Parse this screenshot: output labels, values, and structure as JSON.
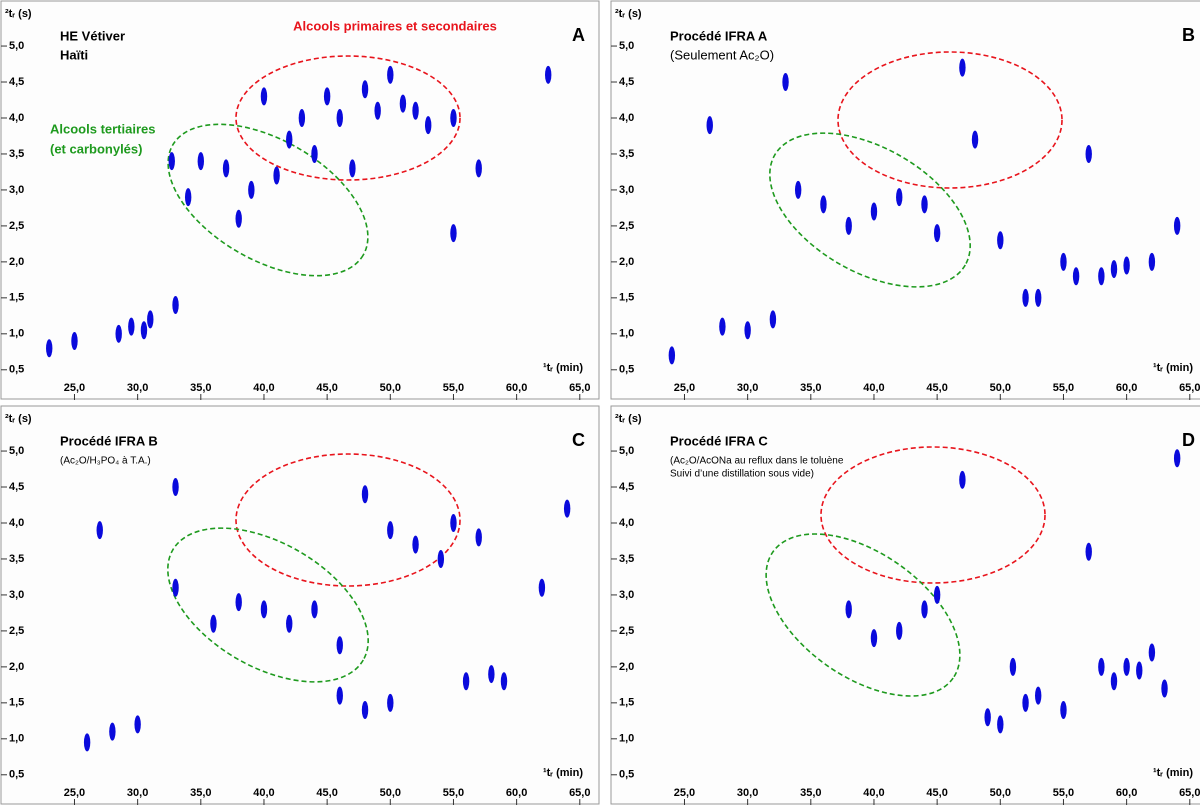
{
  "chart_data": [
    {
      "type": "scatter",
      "label": "A",
      "title": [
        "HE Vétiver",
        "Haïti"
      ],
      "annotations": [
        {
          "text": [
            "Alcools primaires et secondaires"
          ],
          "color": "#e8141c"
        },
        {
          "text": [
            "Alcools tertiaires",
            "(et carbonylés)"
          ],
          "color": "#1e9a1e"
        }
      ],
      "x_label": "¹tᵣ (min)",
      "y_label": "²tᵣ (s)",
      "color": "#0a0adc",
      "xlim": [
        19.5,
        66.6
      ],
      "ylim": [
        0.08,
        5.64
      ],
      "xticks": [
        {
          "value": 25,
          "label": "25,0"
        },
        {
          "value": 30,
          "label": "30,0"
        },
        {
          "value": 35,
          "label": "35,0"
        },
        {
          "value": 40,
          "label": "40,0"
        },
        {
          "value": 45,
          "label": "45,0"
        },
        {
          "value": 50,
          "label": "50,0"
        },
        {
          "value": 55,
          "label": "55,0"
        },
        {
          "value": 60,
          "label": "60,0"
        },
        {
          "value": 65,
          "label": "65,0"
        }
      ],
      "yticks": [
        {
          "value": 0.5,
          "label": "0,5"
        },
        {
          "value": 1,
          "label": "1,0"
        },
        {
          "value": 1.5,
          "label": "1,5"
        },
        {
          "value": 2,
          "label": "2,0"
        },
        {
          "value": 2.5,
          "label": "2,5"
        },
        {
          "value": 3,
          "label": "3,0"
        },
        {
          "value": 3.5,
          "label": "3,5"
        },
        {
          "value": 4,
          "label": "4,0"
        },
        {
          "value": 4.5,
          "label": "4,5"
        },
        {
          "value": 5,
          "label": "5,0"
        }
      ],
      "x": [
        23,
        25,
        28.5,
        29.5,
        30.5,
        31,
        33,
        32.7,
        34,
        35,
        37,
        38,
        39,
        40,
        41,
        42,
        43,
        44,
        45,
        46,
        47,
        48,
        49,
        50,
        51,
        52,
        53,
        55,
        57,
        55,
        62.5
      ],
      "y": [
        0.8,
        0.9,
        1.0,
        1.1,
        1.05,
        1.2,
        1.4,
        3.4,
        2.9,
        3.4,
        3.3,
        2.6,
        3.0,
        4.3,
        3.2,
        3.7,
        4.0,
        3.5,
        4.3,
        4.0,
        3.3,
        4.4,
        4.1,
        4.6,
        4.2,
        4.1,
        3.9,
        4.0,
        3.3,
        2.4,
        4.6
      ]
    },
    {
      "type": "scatter",
      "label": "B",
      "title": [
        "Procédé IFRA A"
      ],
      "subtitle": [
        "(Seulement Ac₂O)"
      ],
      "x_label": "¹tᵣ (min)",
      "y_label": "²tᵣ (s)",
      "color": "#0a0adc",
      "xlim": [
        19.5,
        66.6
      ],
      "ylim": [
        0.08,
        5.64
      ],
      "xticks": [
        {
          "value": 25,
          "label": "25,0"
        },
        {
          "value": 30,
          "label": "30,0"
        },
        {
          "value": 35,
          "label": "35,0"
        },
        {
          "value": 40,
          "label": "40,0"
        },
        {
          "value": 45,
          "label": "45,0"
        },
        {
          "value": 50,
          "label": "50,0"
        },
        {
          "value": 55,
          "label": "55,0"
        },
        {
          "value": 60,
          "label": "60,0"
        },
        {
          "value": 65,
          "label": "65,0"
        }
      ],
      "yticks": [
        {
          "value": 0.5,
          "label": "0,5"
        },
        {
          "value": 1,
          "label": "1,0"
        },
        {
          "value": 1.5,
          "label": "1,5"
        },
        {
          "value": 2,
          "label": "2,0"
        },
        {
          "value": 2.5,
          "label": "2,5"
        },
        {
          "value": 3,
          "label": "3,0"
        },
        {
          "value": 3.5,
          "label": "3,5"
        },
        {
          "value": 4,
          "label": "4,0"
        },
        {
          "value": 4.5,
          "label": "4,5"
        },
        {
          "value": 5,
          "label": "5,0"
        }
      ],
      "x": [
        24,
        28,
        30,
        32,
        27,
        33,
        34,
        36,
        38,
        40,
        42,
        44,
        45,
        47,
        48,
        50,
        52,
        53,
        55,
        56,
        57,
        58,
        59,
        60,
        62,
        64
      ],
      "y": [
        0.7,
        1.1,
        1.05,
        1.2,
        3.9,
        4.5,
        3.0,
        2.8,
        2.5,
        2.7,
        2.9,
        2.8,
        2.4,
        4.7,
        3.7,
        2.3,
        1.5,
        1.5,
        2.0,
        1.8,
        3.5,
        1.8,
        1.9,
        1.95,
        2.0,
        2.5
      ]
    },
    {
      "type": "scatter",
      "label": "C",
      "title": [
        "Procédé IFRA B"
      ],
      "subtitle": [
        "(Ac₂O/H₃PO₄ à T.A.)"
      ],
      "x_label": "¹tᵣ (min)",
      "y_label": "²tᵣ (s)",
      "color": "#0a0adc",
      "xlim": [
        19.5,
        66.6
      ],
      "ylim": [
        0.08,
        5.64
      ],
      "xticks": [
        {
          "value": 25,
          "label": "25,0"
        },
        {
          "value": 30,
          "label": "30,0"
        },
        {
          "value": 35,
          "label": "35,0"
        },
        {
          "value": 40,
          "label": "40,0"
        },
        {
          "value": 45,
          "label": "45,0"
        },
        {
          "value": 50,
          "label": "50,0"
        },
        {
          "value": 55,
          "label": "55,0"
        },
        {
          "value": 60,
          "label": "60,0"
        },
        {
          "value": 65,
          "label": "65,0"
        }
      ],
      "yticks": [
        {
          "value": 0.5,
          "label": "0,5"
        },
        {
          "value": 1,
          "label": "1,0"
        },
        {
          "value": 1.5,
          "label": "1,5"
        },
        {
          "value": 2,
          "label": "2,0"
        },
        {
          "value": 2.5,
          "label": "2,5"
        },
        {
          "value": 3,
          "label": "3,0"
        },
        {
          "value": 3.5,
          "label": "3,5"
        },
        {
          "value": 4,
          "label": "4,0"
        },
        {
          "value": 4.5,
          "label": "4,5"
        },
        {
          "value": 5,
          "label": "5,0"
        }
      ],
      "x": [
        26,
        28,
        30,
        27,
        33,
        33,
        36,
        38,
        40,
        42,
        44,
        46,
        48,
        50,
        52,
        54,
        55,
        46,
        48,
        50,
        56,
        57,
        58,
        59,
        62,
        64
      ],
      "y": [
        0.95,
        1.1,
        1.2,
        3.9,
        4.5,
        3.1,
        2.6,
        2.9,
        2.8,
        2.6,
        2.8,
        2.3,
        4.4,
        3.9,
        3.7,
        3.5,
        4.0,
        1.6,
        1.4,
        1.5,
        1.8,
        3.8,
        1.9,
        1.8,
        3.1,
        4.2
      ]
    },
    {
      "type": "scatter",
      "label": "D",
      "title": [
        "Procédé IFRA C"
      ],
      "subtitle": [
        "(Ac₂O/AcONa au reflux dans le toluène",
        "Suivi d’une distillation sous vide)"
      ],
      "x_label": "¹tᵣ (min)",
      "y_label": "²tᵣ (s)",
      "color": "#0a0adc",
      "xlim": [
        19.5,
        66.6
      ],
      "ylim": [
        0.08,
        5.64
      ],
      "xticks": [
        {
          "value": 25,
          "label": "25,0"
        },
        {
          "value": 30,
          "label": "30,0"
        },
        {
          "value": 35,
          "label": "35,0"
        },
        {
          "value": 40,
          "label": "40,0"
        },
        {
          "value": 45,
          "label": "45,0"
        },
        {
          "value": 50,
          "label": "50,0"
        },
        {
          "value": 55,
          "label": "55,0"
        },
        {
          "value": 60,
          "label": "60,0"
        },
        {
          "value": 65,
          "label": "65,0"
        }
      ],
      "yticks": [
        {
          "value": 0.5,
          "label": "0,5"
        },
        {
          "value": 1,
          "label": "1,0"
        },
        {
          "value": 1.5,
          "label": "1,5"
        },
        {
          "value": 2,
          "label": "2,0"
        },
        {
          "value": 2.5,
          "label": "2,5"
        },
        {
          "value": 3,
          "label": "3,0"
        },
        {
          "value": 3.5,
          "label": "3,5"
        },
        {
          "value": 4,
          "label": "4,0"
        },
        {
          "value": 4.5,
          "label": "4,5"
        },
        {
          "value": 5,
          "label": "5,0"
        }
      ],
      "x": [
        38,
        40,
        42,
        44,
        45,
        47,
        49,
        50,
        51,
        52,
        53,
        55,
        57,
        58,
        59,
        60,
        61,
        62,
        63,
        64
      ],
      "y": [
        2.8,
        2.4,
        2.5,
        2.8,
        3.0,
        4.6,
        1.3,
        1.2,
        2.0,
        1.5,
        1.6,
        1.4,
        3.6,
        2.0,
        1.8,
        2.0,
        1.95,
        2.2,
        1.7,
        4.9
      ]
    }
  ]
}
